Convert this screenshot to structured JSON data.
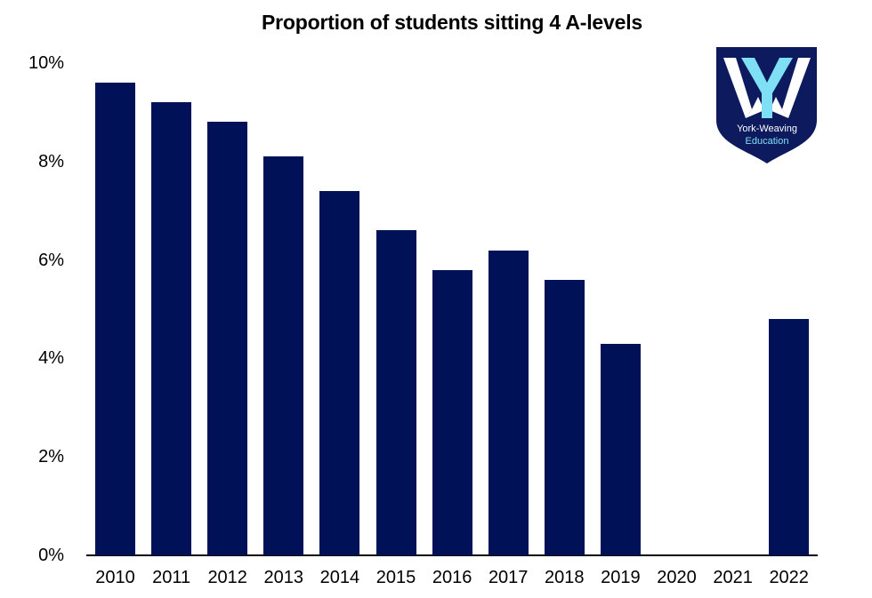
{
  "chart_data": {
    "type": "bar",
    "title": "Proportion of students sitting 4 A-levels",
    "xlabel": "",
    "ylabel": "",
    "categories": [
      "2010",
      "2011",
      "2012",
      "2013",
      "2014",
      "2015",
      "2016",
      "2017",
      "2018",
      "2019",
      "2020",
      "2021",
      "2022"
    ],
    "values": [
      9.6,
      9.2,
      8.8,
      8.1,
      7.4,
      6.6,
      5.8,
      6.2,
      5.6,
      4.3,
      null,
      null,
      4.8
    ],
    "unit": "%",
    "ylim": [
      0,
      10
    ],
    "yticks": [
      "0%",
      "2%",
      "4%",
      "6%",
      "8%",
      "10%"
    ],
    "grid": false,
    "legend": null,
    "bar_color": "#011158"
  },
  "logo": {
    "line1": "York-Weaving",
    "line2": "Education",
    "shield_color": "#0d1a5e",
    "accent_color": "#7fe0f5",
    "letter_color": "#ffffff"
  }
}
